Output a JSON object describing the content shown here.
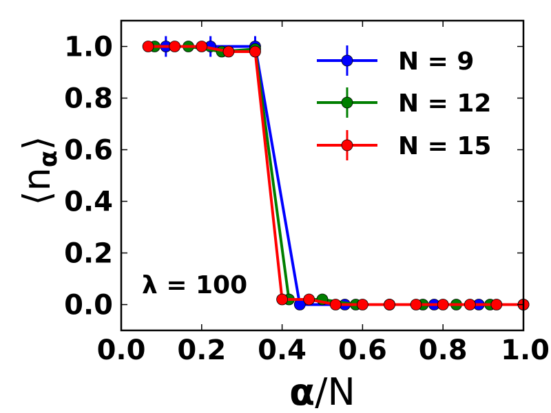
{
  "chart_data": {
    "type": "line",
    "xlabel_main": "α",
    "xlabel_rest": "/N",
    "ylabel_open": "⟨",
    "ylabel_symbol": "n",
    "ylabel_sub": "α",
    "ylabel_close": "⟩",
    "xlim": [
      0.0,
      1.0
    ],
    "ylim": [
      -0.1,
      1.1
    ],
    "xticks": [
      "0.0",
      "0.2",
      "0.4",
      "0.6",
      "0.8",
      "1.0"
    ],
    "xtick_values": [
      0.0,
      0.2,
      0.4,
      0.6,
      0.8,
      1.0
    ],
    "yticks": [
      "0.0",
      "0.2",
      "0.4",
      "0.6",
      "0.8",
      "1.0"
    ],
    "ytick_values": [
      0.0,
      0.2,
      0.4,
      0.6,
      0.8,
      1.0
    ],
    "annotation": "λ = 100",
    "legend_position": "top-right",
    "series": [
      {
        "name": "N = 9",
        "color": "#0000ff",
        "x": [
          0.111,
          0.222,
          0.333,
          0.444,
          0.556,
          0.667,
          0.778,
          0.889,
          1.0
        ],
        "y": [
          1.0,
          1.0,
          1.0,
          0.0,
          0.0,
          0.0,
          0.0,
          0.0,
          0.0
        ],
        "err": [
          0.04,
          0.04,
          0.04,
          0.0,
          0.0,
          0.0,
          0.0,
          0.0,
          0.0
        ]
      },
      {
        "name": "N = 12",
        "color": "#007f00",
        "x": [
          0.083,
          0.167,
          0.25,
          0.333,
          0.417,
          0.5,
          0.583,
          0.667,
          0.75,
          0.833,
          0.917,
          1.0
        ],
        "y": [
          1.0,
          1.0,
          0.98,
          0.99,
          0.02,
          0.02,
          0.0,
          0.0,
          0.0,
          0.0,
          0.0,
          0.0
        ],
        "err": [
          0.0,
          0.0,
          0.01,
          0.01,
          0.01,
          0.01,
          0.0,
          0.0,
          0.0,
          0.0,
          0.0,
          0.0
        ]
      },
      {
        "name": "N = 15",
        "color": "#ff0000",
        "x": [
          0.067,
          0.133,
          0.2,
          0.267,
          0.333,
          0.4,
          0.467,
          0.533,
          0.6,
          0.667,
          0.733,
          0.8,
          0.867,
          0.933,
          1.0
        ],
        "y": [
          1.0,
          1.0,
          1.0,
          0.98,
          0.98,
          0.02,
          0.02,
          0.0,
          0.0,
          0.0,
          0.0,
          0.0,
          0.0,
          0.0,
          0.0
        ],
        "err": [
          0.0,
          0.0,
          0.0,
          0.01,
          0.01,
          0.01,
          0.01,
          0.0,
          0.0,
          0.0,
          0.0,
          0.0,
          0.0,
          0.0,
          0.0
        ]
      }
    ]
  }
}
